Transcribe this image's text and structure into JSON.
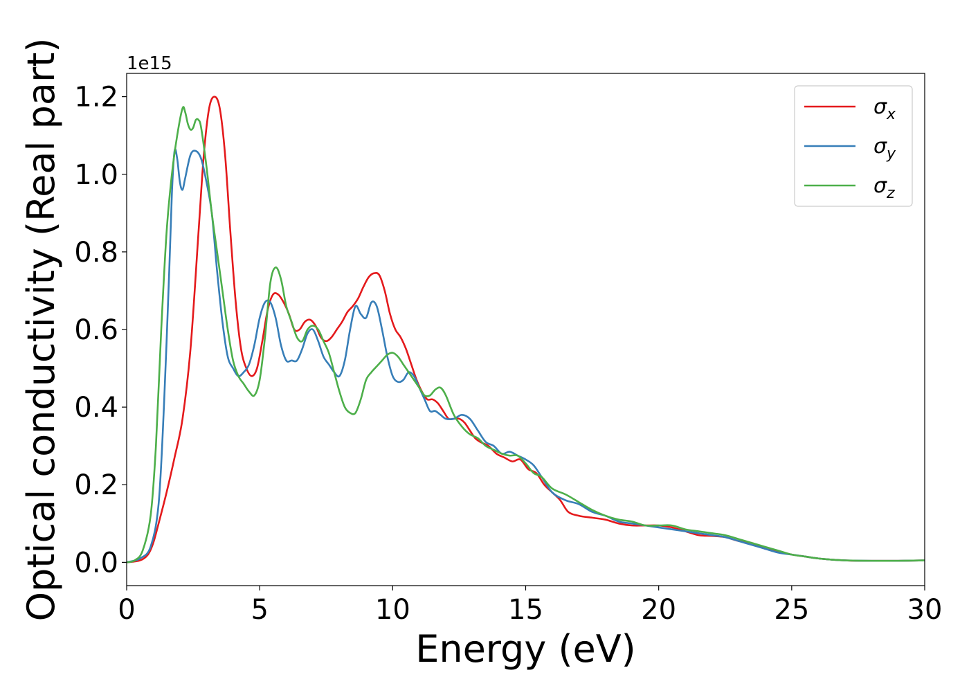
{
  "chart_data": {
    "type": "line",
    "xlabel": "Energy (eV)",
    "ylabel": "Optical conductivity (Real part)",
    "y_offset_label": "1e15",
    "xlim": [
      0,
      30
    ],
    "ylim": [
      -0.06,
      1.26
    ],
    "x_ticks": [
      0,
      5,
      10,
      15,
      20,
      25,
      30
    ],
    "x_tick_labels": [
      "0",
      "5",
      "10",
      "15",
      "20",
      "25",
      "30"
    ],
    "y_ticks": [
      0.0,
      0.2,
      0.4,
      0.6,
      0.8,
      1.0,
      1.2
    ],
    "y_tick_labels": [
      "0.0",
      "0.2",
      "0.4",
      "0.6",
      "0.8",
      "1.0",
      "1.2"
    ],
    "grid": false,
    "legend_position": "top-right",
    "series": [
      {
        "name": "σx",
        "legend_symbol": "σ",
        "legend_subscript": "x",
        "color": "#e41a1c",
        "x": [
          0,
          0.5,
          0.8,
          1.0,
          1.2,
          1.5,
          1.8,
          2.1,
          2.4,
          2.7,
          2.9,
          3.1,
          3.3,
          3.5,
          3.7,
          3.9,
          4.1,
          4.3,
          4.5,
          4.7,
          4.9,
          5.1,
          5.3,
          5.5,
          5.7,
          5.9,
          6.1,
          6.3,
          6.5,
          6.7,
          6.9,
          7.1,
          7.3,
          7.5,
          7.7,
          7.9,
          8.1,
          8.3,
          8.5,
          8.7,
          8.9,
          9.1,
          9.3,
          9.5,
          9.7,
          9.9,
          10.1,
          10.3,
          10.5,
          10.7,
          10.9,
          11.1,
          11.3,
          11.5,
          11.7,
          11.9,
          12.1,
          12.3,
          12.5,
          12.7,
          12.9,
          13.1,
          13.3,
          13.6,
          13.9,
          14.2,
          14.5,
          14.8,
          15.1,
          15.4,
          15.7,
          16.0,
          16.3,
          16.6,
          17.0,
          17.5,
          18.0,
          18.5,
          19.0,
          19.5,
          20.0,
          20.5,
          21.0,
          21.5,
          22.0,
          22.5,
          23.0,
          23.5,
          24.0,
          24.5,
          25.0,
          25.5,
          26.0,
          26.5,
          27.0,
          27.5,
          28.0,
          29.0,
          30.0
        ],
        "y": [
          0.0,
          0.005,
          0.02,
          0.05,
          0.1,
          0.18,
          0.27,
          0.37,
          0.55,
          0.85,
          1.05,
          1.17,
          1.2,
          1.17,
          1.05,
          0.85,
          0.67,
          0.55,
          0.5,
          0.48,
          0.5,
          0.57,
          0.65,
          0.69,
          0.69,
          0.67,
          0.64,
          0.6,
          0.6,
          0.62,
          0.625,
          0.61,
          0.58,
          0.57,
          0.58,
          0.6,
          0.62,
          0.645,
          0.66,
          0.68,
          0.71,
          0.735,
          0.745,
          0.74,
          0.7,
          0.64,
          0.6,
          0.58,
          0.55,
          0.51,
          0.47,
          0.44,
          0.42,
          0.42,
          0.41,
          0.39,
          0.37,
          0.37,
          0.37,
          0.36,
          0.34,
          0.32,
          0.31,
          0.3,
          0.28,
          0.27,
          0.26,
          0.265,
          0.24,
          0.23,
          0.2,
          0.18,
          0.16,
          0.13,
          0.12,
          0.115,
          0.11,
          0.1,
          0.095,
          0.095,
          0.095,
          0.09,
          0.08,
          0.07,
          0.068,
          0.065,
          0.055,
          0.05,
          0.035,
          0.028,
          0.02,
          0.015,
          0.01,
          0.007,
          0.005,
          0.004,
          0.004,
          0.004,
          0.005
        ]
      },
      {
        "name": "σy",
        "legend_symbol": "σ",
        "legend_subscript": "y",
        "color": "#377eb8",
        "x": [
          0,
          0.5,
          0.9,
          1.2,
          1.4,
          1.6,
          1.7,
          1.8,
          1.9,
          2.0,
          2.1,
          2.2,
          2.4,
          2.6,
          2.8,
          3.0,
          3.2,
          3.4,
          3.6,
          3.8,
          4.0,
          4.2,
          4.4,
          4.6,
          4.8,
          5.0,
          5.2,
          5.4,
          5.6,
          5.8,
          6.0,
          6.2,
          6.4,
          6.6,
          6.8,
          7.0,
          7.2,
          7.4,
          7.6,
          7.8,
          8.0,
          8.2,
          8.4,
          8.6,
          8.8,
          9.0,
          9.2,
          9.4,
          9.6,
          9.8,
          10.0,
          10.2,
          10.4,
          10.6,
          10.8,
          11.0,
          11.2,
          11.4,
          11.6,
          11.8,
          12.0,
          12.3,
          12.6,
          12.9,
          13.2,
          13.5,
          13.8,
          14.1,
          14.4,
          14.7,
          15.0,
          15.3,
          15.6,
          16.0,
          16.5,
          17.0,
          17.5,
          18.0,
          18.5,
          19.0,
          19.5,
          20.0,
          20.5,
          21.0,
          21.5,
          22.0,
          22.5,
          23.0,
          23.5,
          24.0,
          24.5,
          25.0,
          25.5,
          26.0,
          26.5,
          27.0,
          28.0,
          29.0,
          30.0
        ],
        "y": [
          0.0,
          0.01,
          0.04,
          0.15,
          0.4,
          0.75,
          0.95,
          1.06,
          1.04,
          0.98,
          0.96,
          0.99,
          1.05,
          1.06,
          1.04,
          0.98,
          0.9,
          0.75,
          0.62,
          0.53,
          0.5,
          0.48,
          0.49,
          0.51,
          0.56,
          0.63,
          0.67,
          0.67,
          0.63,
          0.56,
          0.52,
          0.52,
          0.52,
          0.55,
          0.59,
          0.6,
          0.57,
          0.53,
          0.51,
          0.49,
          0.48,
          0.52,
          0.6,
          0.66,
          0.64,
          0.63,
          0.67,
          0.66,
          0.6,
          0.53,
          0.48,
          0.465,
          0.47,
          0.49,
          0.48,
          0.45,
          0.42,
          0.39,
          0.39,
          0.38,
          0.37,
          0.37,
          0.38,
          0.37,
          0.34,
          0.31,
          0.3,
          0.28,
          0.285,
          0.275,
          0.265,
          0.25,
          0.22,
          0.18,
          0.16,
          0.15,
          0.13,
          0.12,
          0.105,
          0.1,
          0.095,
          0.09,
          0.085,
          0.08,
          0.075,
          0.07,
          0.065,
          0.055,
          0.045,
          0.035,
          0.025,
          0.02,
          0.015,
          0.01,
          0.007,
          0.005,
          0.004,
          0.004,
          0.005
        ]
      },
      {
        "name": "σz",
        "legend_symbol": "σ",
        "legend_subscript": "z",
        "color": "#4daf4a",
        "x": [
          0,
          0.3,
          0.6,
          0.9,
          1.1,
          1.3,
          1.5,
          1.7,
          1.9,
          2.1,
          2.2,
          2.3,
          2.4,
          2.5,
          2.6,
          2.7,
          2.8,
          3.0,
          3.2,
          3.4,
          3.6,
          3.8,
          4.0,
          4.2,
          4.4,
          4.6,
          4.8,
          5.0,
          5.2,
          5.4,
          5.6,
          5.8,
          6.0,
          6.2,
          6.4,
          6.6,
          6.8,
          7.0,
          7.2,
          7.4,
          7.6,
          7.8,
          8.0,
          8.2,
          8.4,
          8.6,
          8.8,
          9.0,
          9.2,
          9.4,
          9.6,
          9.8,
          10.0,
          10.2,
          10.4,
          10.6,
          10.8,
          11.0,
          11.2,
          11.4,
          11.6,
          11.8,
          12.0,
          12.3,
          12.6,
          12.9,
          13.2,
          13.5,
          13.8,
          14.1,
          14.4,
          14.7,
          15.0,
          15.3,
          15.6,
          16.0,
          16.5,
          17.0,
          17.5,
          18.0,
          18.5,
          19.0,
          19.5,
          20.0,
          20.5,
          21.0,
          21.5,
          22.0,
          22.5,
          23.0,
          23.5,
          24.0,
          24.5,
          25.0,
          25.5,
          26.0,
          26.5,
          27.0,
          28.0,
          29.0,
          30.0
        ],
        "y": [
          0.0,
          0.005,
          0.03,
          0.12,
          0.3,
          0.6,
          0.85,
          1.0,
          1.1,
          1.17,
          1.16,
          1.13,
          1.115,
          1.12,
          1.14,
          1.14,
          1.12,
          1.02,
          0.9,
          0.8,
          0.7,
          0.6,
          0.52,
          0.48,
          0.46,
          0.44,
          0.43,
          0.47,
          0.58,
          0.72,
          0.76,
          0.73,
          0.66,
          0.62,
          0.58,
          0.57,
          0.6,
          0.61,
          0.6,
          0.57,
          0.54,
          0.49,
          0.44,
          0.4,
          0.385,
          0.385,
          0.42,
          0.47,
          0.49,
          0.505,
          0.52,
          0.535,
          0.54,
          0.53,
          0.51,
          0.49,
          0.47,
          0.45,
          0.43,
          0.43,
          0.445,
          0.45,
          0.43,
          0.38,
          0.35,
          0.33,
          0.32,
          0.3,
          0.29,
          0.28,
          0.275,
          0.275,
          0.255,
          0.23,
          0.22,
          0.19,
          0.175,
          0.155,
          0.135,
          0.12,
          0.11,
          0.105,
          0.095,
          0.095,
          0.095,
          0.085,
          0.08,
          0.075,
          0.07,
          0.06,
          0.05,
          0.04,
          0.03,
          0.02,
          0.015,
          0.01,
          0.007,
          0.005,
          0.004,
          0.004,
          0.005
        ]
      }
    ]
  }
}
